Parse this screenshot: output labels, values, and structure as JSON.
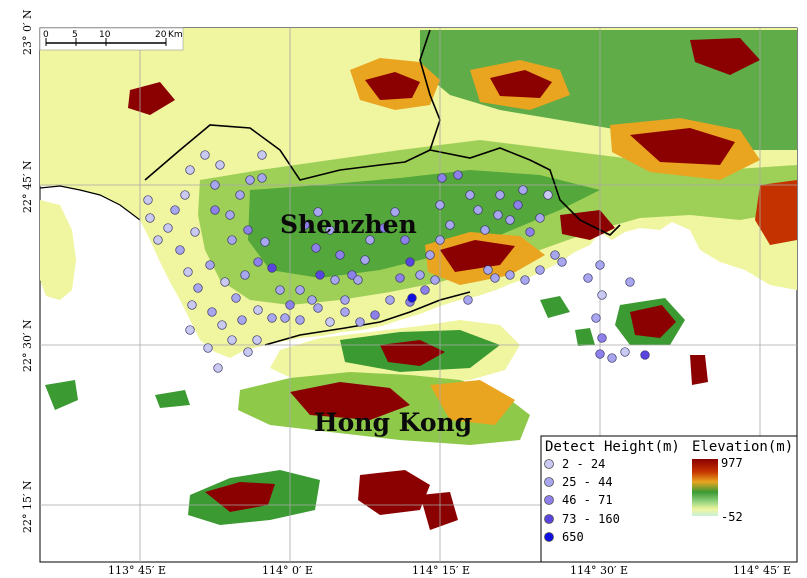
{
  "map": {
    "place_labels": [
      "Shenzhen",
      "Hong Kong"
    ],
    "lon_ticks": [
      "113° 45′ E",
      "114° 0′ E",
      "114° 15′ E",
      "114° 30′ E",
      "114° 45′ E"
    ],
    "lat_ticks": [
      "23° 0′ N",
      "22° 45′ N",
      "22° 30′ N",
      "22° 15′ N"
    ],
    "scale_bar": {
      "ticks": [
        "0",
        "5",
        "10",
        "20"
      ],
      "unit": "Km"
    },
    "detect_legend": {
      "title": "Detect Height(m)",
      "classes": [
        {
          "label": "2 - 24",
          "color": "#c9c9f2"
        },
        {
          "label": "25 - 44",
          "color": "#a9a6f0"
        },
        {
          "label": "46 - 71",
          "color": "#8d80ea"
        },
        {
          "label": "73 - 160",
          "color": "#5a44e0"
        },
        {
          "label": "650",
          "color": "#1010e0"
        }
      ]
    },
    "elevation_legend": {
      "title": "Elevation(m)",
      "max_label": "977",
      "min_label": "-52",
      "ramp_colors": [
        "#8b0000",
        "#c43200",
        "#e9a420",
        "#3b9a32",
        "#8fd07c",
        "#f0f5a0",
        "#c8f0d8"
      ]
    },
    "colors": {
      "sea": "#ffffff",
      "low_land": "#f0f5a0",
      "mid_land": "#8fc94a",
      "forest": "#3b9a32",
      "hill": "#e9a420",
      "peak": "#8b0000",
      "boundary": "#000000"
    }
  }
}
